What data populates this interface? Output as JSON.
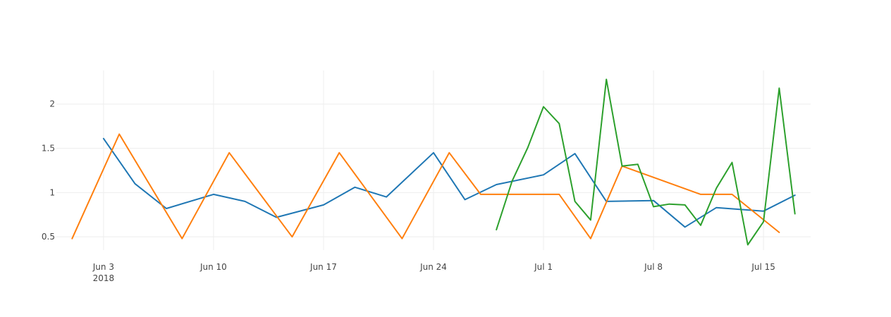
{
  "chart_data": {
    "type": "line",
    "title": "",
    "xlabel": "",
    "ylabel": "",
    "x_axis": {
      "type": "date",
      "range": [
        "2018-05-31",
        "2018-07-18"
      ],
      "ticks": [
        {
          "date": "2018-06-03",
          "label": "Jun 3",
          "sublabel": "2018"
        },
        {
          "date": "2018-06-10",
          "label": "Jun 10"
        },
        {
          "date": "2018-06-17",
          "label": "Jun 17"
        },
        {
          "date": "2018-06-24",
          "label": "Jun 24"
        },
        {
          "date": "2018-07-01",
          "label": "Jul 1"
        },
        {
          "date": "2018-07-08",
          "label": "Jul 8"
        },
        {
          "date": "2018-07-15",
          "label": "Jul 15"
        }
      ]
    },
    "y_axis": {
      "range": [
        0.35,
        2.38
      ],
      "ticks": [
        0.5,
        1,
        1.5,
        2
      ],
      "tick_labels": [
        "0.5",
        "1",
        "1.5",
        "2"
      ]
    },
    "grid": true,
    "legend": "none",
    "series": [
      {
        "color": "#1f77b4",
        "points": [
          {
            "x": "2018-06-03",
            "y": 1.61
          },
          {
            "x": "2018-06-05",
            "y": 1.1
          },
          {
            "x": "2018-06-07",
            "y": 0.82
          },
          {
            "x": "2018-06-10",
            "y": 0.98
          },
          {
            "x": "2018-06-12",
            "y": 0.9
          },
          {
            "x": "2018-06-14",
            "y": 0.72
          },
          {
            "x": "2018-06-17",
            "y": 0.86
          },
          {
            "x": "2018-06-19",
            "y": 1.06
          },
          {
            "x": "2018-06-21",
            "y": 0.95
          },
          {
            "x": "2018-06-24",
            "y": 1.45
          },
          {
            "x": "2018-06-26",
            "y": 0.92
          },
          {
            "x": "2018-06-28",
            "y": 1.09
          },
          {
            "x": "2018-07-01",
            "y": 1.2
          },
          {
            "x": "2018-07-03",
            "y": 1.44
          },
          {
            "x": "2018-07-05",
            "y": 0.9
          },
          {
            "x": "2018-07-08",
            "y": 0.91
          },
          {
            "x": "2018-07-10",
            "y": 0.61
          },
          {
            "x": "2018-07-12",
            "y": 0.83
          },
          {
            "x": "2018-07-15",
            "y": 0.79
          },
          {
            "x": "2018-07-17",
            "y": 0.97
          }
        ]
      },
      {
        "color": "#ff7f0e",
        "points": [
          {
            "x": "2018-06-01",
            "y": 0.48
          },
          {
            "x": "2018-06-04",
            "y": 1.66
          },
          {
            "x": "2018-06-08",
            "y": 0.48
          },
          {
            "x": "2018-06-11",
            "y": 1.45
          },
          {
            "x": "2018-06-15",
            "y": 0.5
          },
          {
            "x": "2018-06-18",
            "y": 1.45
          },
          {
            "x": "2018-06-22",
            "y": 0.48
          },
          {
            "x": "2018-06-25",
            "y": 1.45
          },
          {
            "x": "2018-06-27",
            "y": 0.98
          },
          {
            "x": "2018-07-02",
            "y": 0.98
          },
          {
            "x": "2018-07-04",
            "y": 0.48
          },
          {
            "x": "2018-07-06",
            "y": 1.3
          },
          {
            "x": "2018-07-11",
            "y": 0.98
          },
          {
            "x": "2018-07-13",
            "y": 0.98
          },
          {
            "x": "2018-07-16",
            "y": 0.55
          }
        ]
      },
      {
        "color": "#2ca02c",
        "points": [
          {
            "x": "2018-06-28",
            "y": 0.58
          },
          {
            "x": "2018-06-29",
            "y": 1.13
          },
          {
            "x": "2018-06-30",
            "y": 1.51
          },
          {
            "x": "2018-07-01",
            "y": 1.97
          },
          {
            "x": "2018-07-02",
            "y": 1.78
          },
          {
            "x": "2018-07-03",
            "y": 0.9
          },
          {
            "x": "2018-07-04",
            "y": 0.69
          },
          {
            "x": "2018-07-05",
            "y": 2.28
          },
          {
            "x": "2018-07-06",
            "y": 1.3
          },
          {
            "x": "2018-07-07",
            "y": 1.32
          },
          {
            "x": "2018-07-08",
            "y": 0.84
          },
          {
            "x": "2018-07-09",
            "y": 0.87
          },
          {
            "x": "2018-07-10",
            "y": 0.86
          },
          {
            "x": "2018-07-11",
            "y": 0.63
          },
          {
            "x": "2018-07-12",
            "y": 1.05
          },
          {
            "x": "2018-07-13",
            "y": 1.34
          },
          {
            "x": "2018-07-14",
            "y": 0.41
          },
          {
            "x": "2018-07-15",
            "y": 0.67
          },
          {
            "x": "2018-07-16",
            "y": 2.18
          },
          {
            "x": "2018-07-17",
            "y": 0.76
          }
        ]
      }
    ]
  }
}
